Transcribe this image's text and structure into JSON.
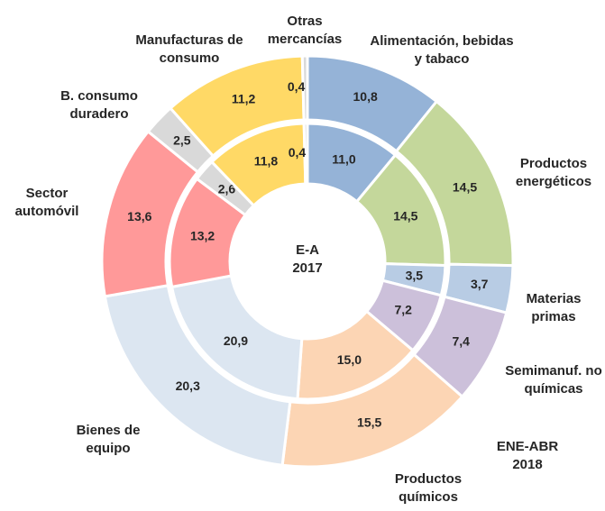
{
  "chart_data": {
    "type": "donut",
    "categories": [
      "Alimentación, bebidas y tabaco",
      "Productos energéticos",
      "Materias primas",
      "Semimanuf. no químicas",
      "Productos químicos",
      "Bienes de equipo",
      "Sector automóvil",
      "B. consumo duradero",
      "Manufacturas de consumo",
      "Otras mercancías"
    ],
    "colors": [
      "#95b3d7",
      "#c4d79b",
      "#b8cce4",
      "#ccc0da",
      "#fcd5b4",
      "#dce6f1",
      "#ff9999",
      "#d9d9d9",
      "#ffd966",
      "#d9d9d9"
    ],
    "series": [
      {
        "name": "E-A 2017",
        "values": [
          11.0,
          14.5,
          3.5,
          7.2,
          15.0,
          20.9,
          13.2,
          2.6,
          11.8,
          0.4
        ],
        "value_labels": [
          "11,0",
          "14,5",
          "3,5",
          "7,2",
          "15,0",
          "20,9",
          "13,2",
          "2,6",
          "11,8",
          "0,4"
        ]
      },
      {
        "name": "ENE-ABR 2018",
        "values": [
          10.8,
          14.5,
          3.7,
          7.4,
          15.5,
          20.3,
          13.6,
          2.5,
          11.2,
          0.4
        ],
        "value_labels": [
          "10,8",
          "14,5",
          "3,7",
          "7,4",
          "15,5",
          "20,3",
          "13,6",
          "2,5",
          "11,2",
          "0,4"
        ]
      }
    ]
  }
}
